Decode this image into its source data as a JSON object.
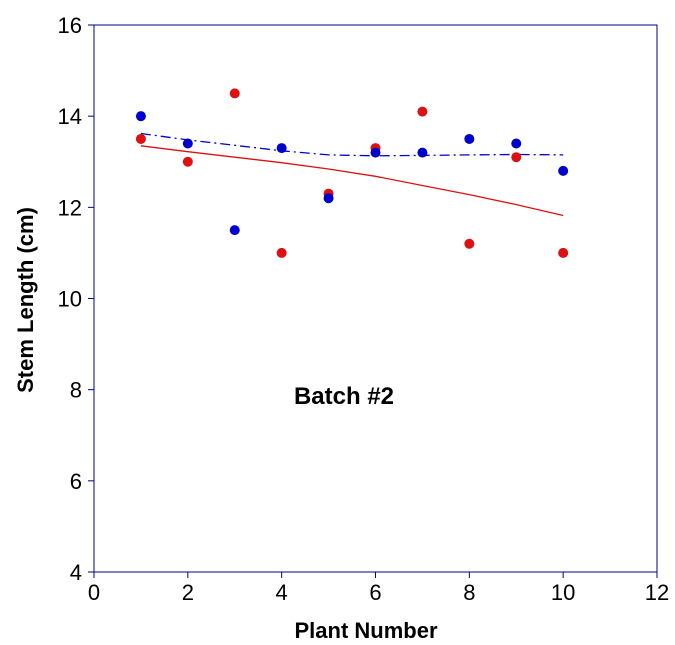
{
  "chart_data": {
    "type": "scatter",
    "title": "",
    "xlabel": "Plant Number",
    "ylabel": "Stem Length (cm)",
    "xlim": [
      0,
      12
    ],
    "ylim": [
      4,
      16
    ],
    "xticks": [
      0,
      2,
      4,
      6,
      8,
      10,
      12
    ],
    "yticks": [
      4,
      6,
      8,
      10,
      12,
      14,
      16
    ],
    "grid": false,
    "annotation": "Batch #2",
    "series": [
      {
        "color": "#dd1111",
        "x": [
          1,
          2,
          3,
          4,
          5,
          6,
          7,
          8,
          9,
          10
        ],
        "y": [
          13.5,
          13.0,
          14.5,
          11.0,
          12.3,
          13.3,
          14.1,
          11.2,
          13.1,
          11.0
        ],
        "trendline": {
          "style": "solid",
          "x": [
            1,
            2,
            3,
            4,
            5,
            6,
            7,
            8,
            9,
            10
          ],
          "y": [
            13.35,
            13.22,
            13.1,
            12.98,
            12.84,
            12.68,
            12.48,
            12.28,
            12.06,
            11.82
          ]
        }
      },
      {
        "color": "#0000cc",
        "x": [
          1,
          2,
          3,
          4,
          5,
          6,
          7,
          8,
          9,
          10
        ],
        "y": [
          14.0,
          13.4,
          11.5,
          13.3,
          12.2,
          13.2,
          13.2,
          13.5,
          13.4,
          12.8
        ],
        "trendline": {
          "style": "dash-dot",
          "x": [
            1,
            2,
            3,
            4,
            5,
            6,
            7,
            8,
            9,
            10
          ],
          "y": [
            13.62,
            13.48,
            13.36,
            13.24,
            13.15,
            13.13,
            13.14,
            13.15,
            13.16,
            13.15
          ]
        }
      }
    ]
  }
}
